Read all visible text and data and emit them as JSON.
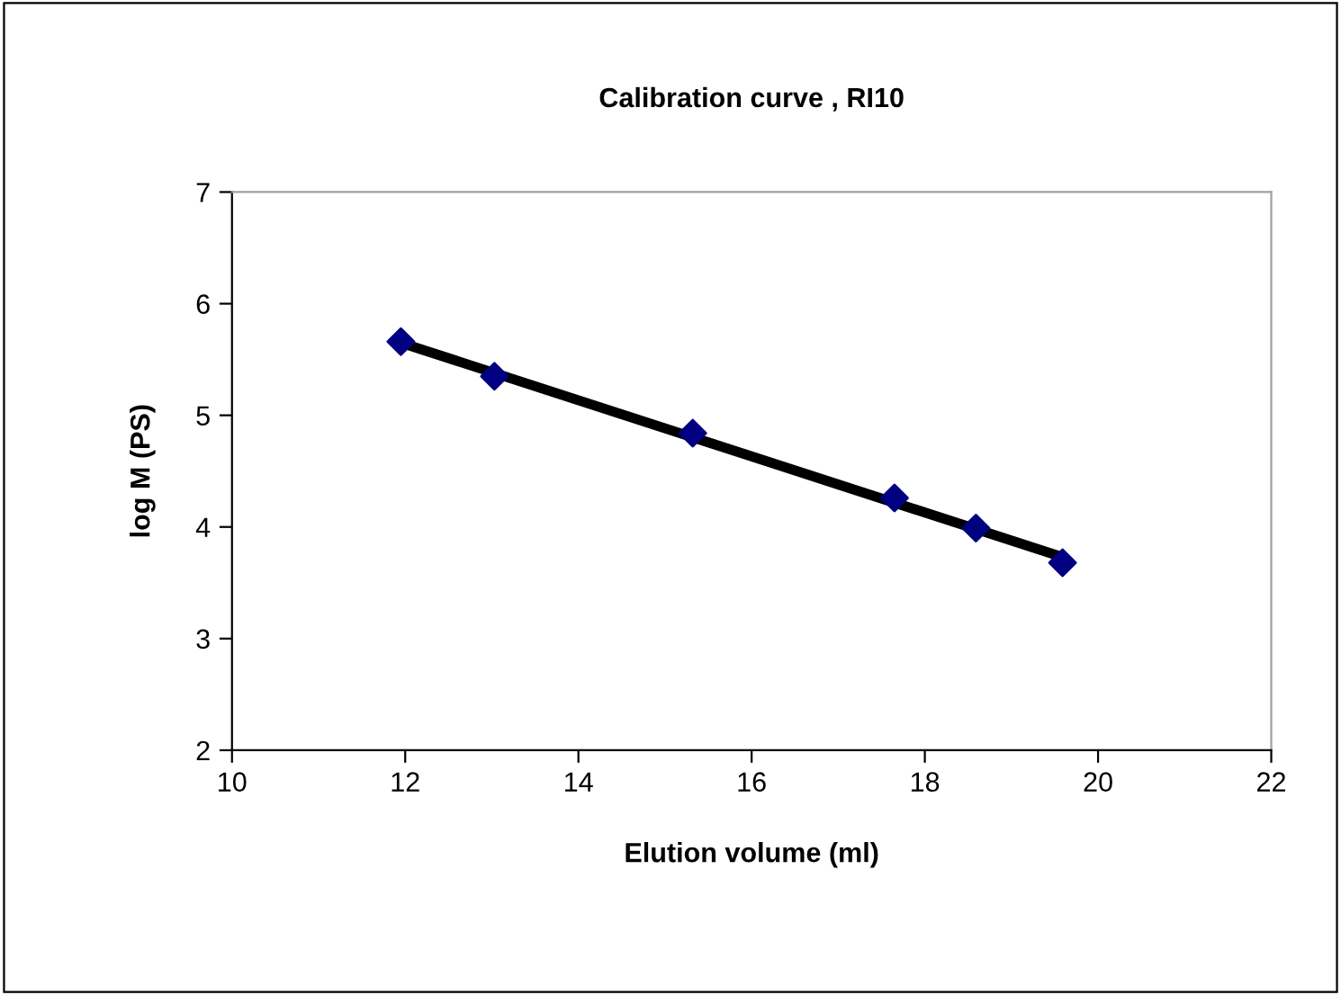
{
  "chart_data": {
    "type": "scatter",
    "title": "Calibration curve , RI10",
    "xlabel": "Elution volume (ml)",
    "ylabel": "log M (PS)",
    "xlim": [
      10,
      22
    ],
    "xticks": [
      10,
      12,
      14,
      16,
      18,
      20,
      22
    ],
    "ylim": [
      2,
      7
    ],
    "yticks": [
      2,
      3,
      4,
      5,
      6,
      7
    ],
    "grid": false,
    "legend": false,
    "series": [
      {
        "type": "line",
        "color": "#000000",
        "marker": "none",
        "line_style": "solid",
        "x": [
          11.95,
          19.59
        ],
        "values": [
          5.65,
          3.73
        ]
      },
      {
        "color": "#000080",
        "marker": "diamond",
        "x": [
          11.95,
          13.03,
          15.32,
          17.65,
          18.59,
          19.59
        ],
        "values": [
          5.66,
          5.35,
          4.84,
          4.26,
          3.99,
          3.68
        ]
      }
    ]
  }
}
